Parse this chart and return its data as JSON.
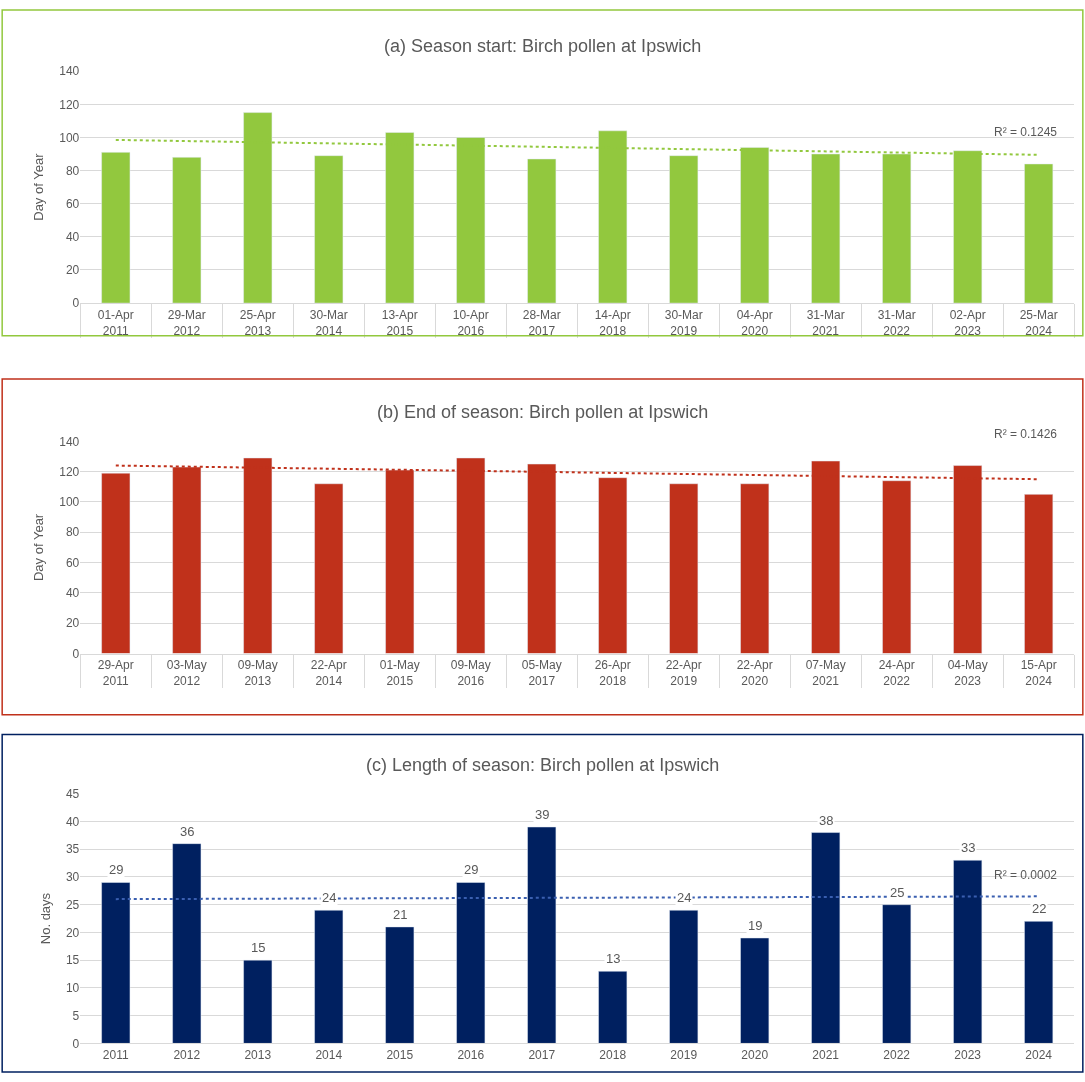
{
  "chart_data": [
    {
      "type": "bar",
      "title": "(a) Season start: Birch pollen at Ipswich",
      "ylabel": "Day of Year",
      "categories": [
        "01-Apr\n2011",
        "29-Mar\n2012",
        "25-Apr\n2013",
        "30-Mar\n2014",
        "13-Apr\n2015",
        "10-Apr\n2016",
        "28-Mar\n2017",
        "14-Apr\n2018",
        "30-Mar\n2019",
        "04-Apr\n2020",
        "31-Mar\n2021",
        "31-Mar\n2022",
        "02-Apr\n2023",
        "25-Mar\n2024"
      ],
      "series": [
        {
          "color": "#92c83e",
          "values": [
            91,
            88,
            115,
            89,
            103,
            100,
            87,
            104,
            89,
            94,
            90,
            90,
            92,
            84
          ]
        },
        {
          "type": "line",
          "color": "#92c83e",
          "line_style": "dotted",
          "values": [
            98.5,
            null,
            null,
            null,
            null,
            null,
            null,
            null,
            null,
            null,
            null,
            null,
            null,
            89.5
          ]
        }
      ],
      "ylim": [
        0,
        140
      ],
      "yticks": [
        0,
        20,
        40,
        60,
        80,
        100,
        120,
        140
      ],
      "grid": "y",
      "annotations": [
        "R² = 0.1245"
      ]
    },
    {
      "type": "bar",
      "title": "(b) End of season: Birch pollen at Ipswich",
      "ylabel": "Day of Year",
      "categories": [
        "29-Apr\n2011",
        "03-May\n2012",
        "09-May\n2013",
        "22-Apr\n2014",
        "01-May\n2015",
        "09-May\n2016",
        "05-May\n2017",
        "26-Apr\n2018",
        "22-Apr\n2019",
        "22-Apr\n2020",
        "07-May\n2021",
        "24-Apr\n2022",
        "04-May\n2023",
        "15-Apr\n2024"
      ],
      "series": [
        {
          "color": "#c0311b",
          "values": [
            119,
            123,
            129,
            112,
            121,
            129,
            125,
            116,
            112,
            112,
            127,
            114,
            124,
            105
          ]
        },
        {
          "type": "line",
          "color": "#c0311b",
          "line_style": "dotted",
          "values": [
            124,
            null,
            null,
            null,
            null,
            null,
            null,
            null,
            null,
            null,
            null,
            null,
            null,
            115
          ]
        }
      ],
      "ylim": [
        0,
        140
      ],
      "yticks": [
        0,
        20,
        40,
        60,
        80,
        100,
        120,
        140
      ],
      "grid": "y",
      "annotations": [
        "R² = 0.1426"
      ]
    },
    {
      "type": "bar",
      "title": "(c) Length of season: Birch pollen at Ipswich",
      "ylabel": "No. days",
      "categories": [
        "2011",
        "2012",
        "2013",
        "2014",
        "2015",
        "2016",
        "2017",
        "2018",
        "2019",
        "2020",
        "2021",
        "2022",
        "2023",
        "2024"
      ],
      "series": [
        {
          "color": "#002060",
          "data_labels": true,
          "values": [
            29,
            36,
            15,
            24,
            21,
            29,
            39,
            13,
            24,
            19,
            38,
            25,
            33,
            22
          ]
        },
        {
          "type": "line",
          "color": "#3a5fb0",
          "line_style": "dotted",
          "values": [
            26,
            null,
            null,
            null,
            null,
            null,
            null,
            null,
            null,
            null,
            null,
            null,
            null,
            26.5
          ]
        }
      ],
      "ylim": [
        0,
        45
      ],
      "yticks": [
        0,
        5,
        10,
        15,
        20,
        25,
        30,
        35,
        40,
        45
      ],
      "grid": "y",
      "annotations": [
        "R² = 0.0002"
      ]
    }
  ]
}
